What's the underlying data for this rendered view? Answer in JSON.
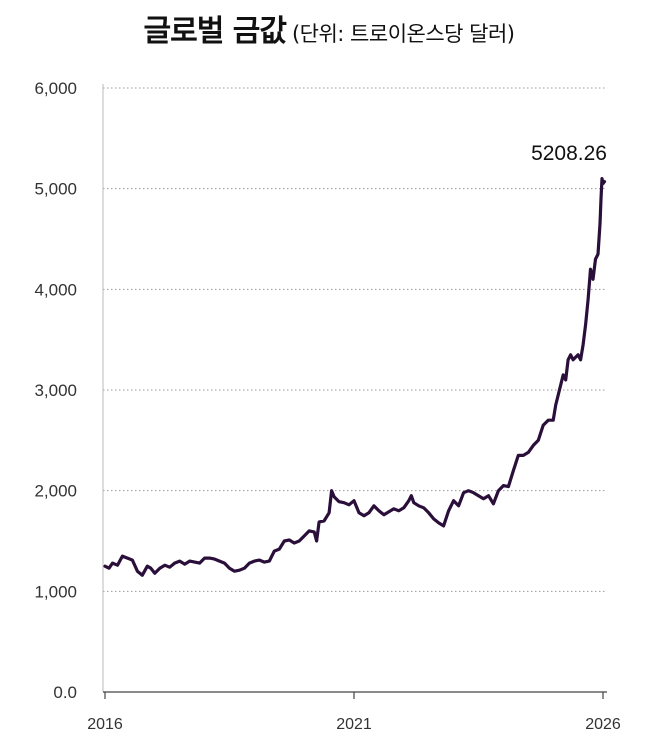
{
  "chart_data": {
    "type": "line",
    "title": "글로벌 금값",
    "subtitle": "(단위: 트로이온스당 달러)",
    "ylim": [
      0,
      6000
    ],
    "xlim": [
      2016,
      2026
    ],
    "yticks": [
      {
        "value": 0,
        "label": "0.0"
      },
      {
        "value": 1000,
        "label": "1,000"
      },
      {
        "value": 2000,
        "label": "2,000"
      },
      {
        "value": 3000,
        "label": "3,000"
      },
      {
        "value": 4000,
        "label": "4,000"
      },
      {
        "value": 5000,
        "label": "5,000"
      },
      {
        "value": 6000,
        "label": "6,000"
      }
    ],
    "xticks": [
      {
        "value": 2016,
        "label": "2016"
      },
      {
        "value": 2021,
        "label": "2021"
      },
      {
        "value": 2026,
        "label": "2026"
      }
    ],
    "grid": "horizontal-dotted",
    "line_color": "#2a0f3a",
    "end_label": "5208.26",
    "series": [
      {
        "x": [
          2016.0,
          2016.08,
          2016.15,
          2016.25,
          2016.35,
          2016.45,
          2016.55,
          2016.65,
          2016.75,
          2016.85,
          2016.92,
          2017.0,
          2017.1,
          2017.2,
          2017.3,
          2017.4,
          2017.5,
          2017.6,
          2017.7,
          2017.8,
          2017.9,
          2018.0,
          2018.1,
          2018.2,
          2018.3,
          2018.4,
          2018.5,
          2018.6,
          2018.7,
          2018.8,
          2018.9,
          2019.0,
          2019.1,
          2019.2,
          2019.3,
          2019.4,
          2019.5,
          2019.6,
          2019.7,
          2019.8,
          2019.9,
          2020.0,
          2020.1,
          2020.2,
          2020.25,
          2020.3,
          2020.4,
          2020.5,
          2020.55,
          2020.6,
          2020.7,
          2020.8,
          2020.9,
          2021.0,
          2021.1,
          2021.2,
          2021.3,
          2021.4,
          2021.5,
          2021.6,
          2021.7,
          2021.8,
          2021.9,
          2022.0,
          2022.1,
          2022.15,
          2022.2,
          2022.3,
          2022.4,
          2022.5,
          2022.6,
          2022.7,
          2022.8,
          2022.9,
          2023.0,
          2023.1,
          2023.2,
          2023.3,
          2023.4,
          2023.5,
          2023.6,
          2023.7,
          2023.8,
          2023.9,
          2024.0,
          2024.1,
          2024.2,
          2024.3,
          2024.4,
          2024.5,
          2024.6,
          2024.7,
          2024.8,
          2024.9,
          2025.0,
          2025.05,
          2025.1,
          2025.2,
          2025.25,
          2025.3,
          2025.35,
          2025.4,
          2025.5,
          2025.55,
          2025.6,
          2025.65,
          2025.7,
          2025.75,
          2025.8,
          2025.85,
          2025.9,
          2025.94,
          2025.96,
          2025.98,
          2026.0,
          2026.03
        ],
        "y": [
          1250,
          1230,
          1280,
          1260,
          1350,
          1330,
          1310,
          1200,
          1160,
          1250,
          1230,
          1180,
          1230,
          1260,
          1240,
          1280,
          1300,
          1270,
          1300,
          1290,
          1280,
          1330,
          1330,
          1320,
          1300,
          1280,
          1230,
          1200,
          1210,
          1230,
          1280,
          1300,
          1310,
          1290,
          1300,
          1400,
          1420,
          1500,
          1510,
          1480,
          1500,
          1550,
          1600,
          1590,
          1500,
          1690,
          1700,
          1780,
          2000,
          1940,
          1890,
          1880,
          1860,
          1900,
          1780,
          1750,
          1780,
          1850,
          1800,
          1760,
          1790,
          1820,
          1800,
          1830,
          1900,
          1950,
          1880,
          1850,
          1830,
          1780,
          1720,
          1680,
          1650,
          1800,
          1900,
          1850,
          1980,
          2000,
          1980,
          1950,
          1920,
          1950,
          1870,
          2000,
          2050,
          2040,
          2200,
          2350,
          2350,
          2380,
          2450,
          2500,
          2650,
          2700,
          2700,
          2850,
          2950,
          3150,
          3100,
          3300,
          3350,
          3300,
          3350,
          3300,
          3450,
          3650,
          3900,
          4200,
          4100,
          4300,
          4350,
          4650,
          4900,
          5100,
          5050,
          5070
        ]
      }
    ]
  }
}
